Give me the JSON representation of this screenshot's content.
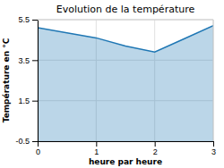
{
  "chart_data": {
    "type": "area",
    "title": "Evolution de la température",
    "xlabel": "heure par heure",
    "ylabel": "Température en °C",
    "x": [
      0,
      0.5,
      1,
      1.5,
      2,
      2.5,
      3
    ],
    "values": [
      5.1,
      4.85,
      4.6,
      4.2,
      3.9,
      4.55,
      5.2
    ],
    "xlim": [
      0,
      3
    ],
    "ylim": [
      -0.5,
      5.5
    ],
    "xticks": [
      0,
      1,
      2,
      3
    ],
    "yticks": [
      -0.5,
      1.5,
      3.5,
      5.5
    ],
    "grid": true
  }
}
